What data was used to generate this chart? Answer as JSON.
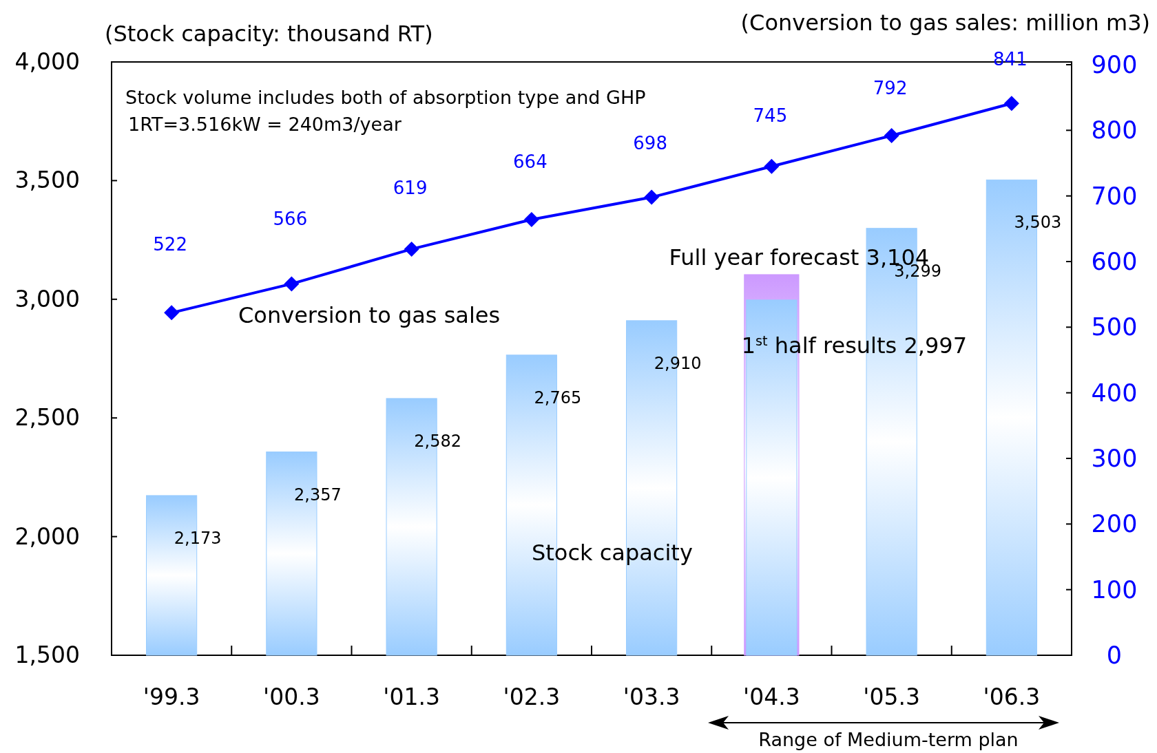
{
  "chart_data": {
    "type": "bar",
    "ylabel": "(Stock capacity: thousand RT)",
    "y2label": "(Conversion to gas sales: million m3)",
    "categories": [
      "'99.3",
      "'00.3",
      "'01.3",
      "'02.3",
      "'03.3",
      "'04.3",
      "'05.3",
      "'06.3"
    ],
    "ylim": [
      1500,
      4000
    ],
    "yticks": [
      {
        "value": 1500,
        "label": "1,500"
      },
      {
        "value": 2000,
        "label": "2,000"
      },
      {
        "value": 2500,
        "label": "2,500"
      },
      {
        "value": 3000,
        "label": "3,000"
      },
      {
        "value": 3500,
        "label": "3,500"
      },
      {
        "value": 4000,
        "label": "4,000"
      }
    ],
    "y2lim": [
      0,
      900
    ],
    "y2ticks": [
      0,
      100,
      200,
      300,
      400,
      500,
      600,
      700,
      800,
      900
    ],
    "series": [
      {
        "color": "#cc99ff",
        "values": [
          null,
          null,
          null,
          null,
          null,
          3104,
          null,
          null
        ]
      },
      {
        "color": "#99ccff",
        "values": [
          2173,
          2357,
          2582,
          2765,
          2910,
          2997,
          3299,
          3503
        ],
        "value_labels": [
          "2,173",
          "2,357",
          "2,582",
          "2,765",
          "2,910",
          null,
          "3,299",
          "3,503"
        ]
      },
      {
        "type": "line",
        "axis": "y2",
        "color": "#0000ff",
        "values": [
          522,
          566,
          619,
          664,
          698,
          745,
          792,
          841
        ],
        "value_labels": [
          "522",
          "566",
          "619",
          "664",
          "698",
          "745",
          "792",
          "841"
        ]
      }
    ],
    "annotations": [
      "Stock volume includes both of  absorption type and GHP",
      "1RT=3.516kW = 240m3/year",
      "Conversion to gas sales",
      "Stock capacity",
      {
        "text": "Full year forecast 3,104",
        "x": "'04.3",
        "y": 3104
      },
      {
        "text": "1$^{st}$ half results 2,997",
        "x": "'04.3",
        "y": 2997
      },
      "Range of Medium-term plan"
    ],
    "marker": "diamond"
  }
}
